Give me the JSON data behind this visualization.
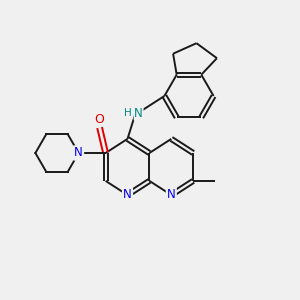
{
  "background_color": "#f0f0f0",
  "bond_color": "#1a1a1a",
  "N_color": "#0000ee",
  "O_color": "#dd0000",
  "NH_color": "#008888",
  "lw": 1.4,
  "figsize": [
    3.0,
    3.0
  ],
  "dpi": 100,
  "xlim": [
    0,
    10
  ],
  "ylim": [
    0,
    10
  ]
}
